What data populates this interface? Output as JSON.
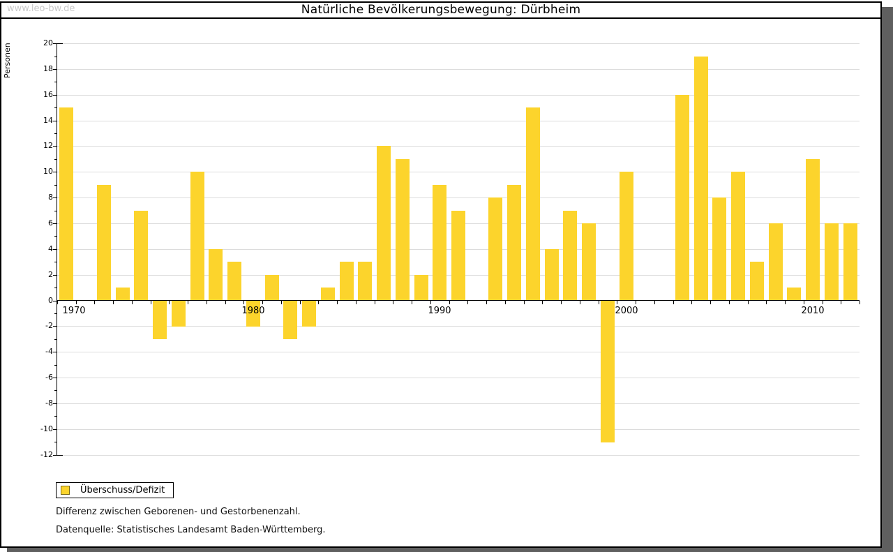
{
  "watermark": "www.leo-bw.de",
  "title": "Natürliche Bevölkerungsbewegung: Dürbheim",
  "legend": {
    "label": "Überschuss/Defizit",
    "swatch_color": "#fcd42c"
  },
  "footnotes": [
    "Differenz zwischen Geborenen- und Gestorbenenzahl.",
    "Datenquelle: Statistisches Landesamt Baden-Württemberg."
  ],
  "colors": {
    "bar": "#fcd42c",
    "grid": "#dcdcdc",
    "axis": "#000000",
    "shadow": "#5f5f5f",
    "watermark": "#c9c9c9"
  },
  "chart_data": {
    "type": "bar",
    "title": "Natürliche Bevölkerungsbewegung: Dürbheim",
    "xlabel": "",
    "ylabel": "Personen",
    "ylim": [
      -12,
      20
    ],
    "ytick_step": 2,
    "grid": true,
    "legend_position": "bottom-left",
    "series_name": "Überschuss/Defizit",
    "xticks_labeled": [
      1970,
      1980,
      1990,
      2000,
      2010
    ],
    "categories": [
      1970,
      1971,
      1972,
      1973,
      1974,
      1975,
      1976,
      1977,
      1978,
      1979,
      1980,
      1981,
      1982,
      1983,
      1984,
      1985,
      1986,
      1987,
      1988,
      1989,
      1990,
      1991,
      1992,
      1993,
      1994,
      1995,
      1996,
      1997,
      1998,
      1999,
      2000,
      2001,
      2002,
      2003,
      2004,
      2005,
      2006,
      2007,
      2008,
      2009,
      2010,
      2011,
      2012
    ],
    "values": [
      15,
      null,
      9,
      1,
      7,
      -3,
      -2,
      10,
      4,
      3,
      -2,
      2,
      -3,
      -2,
      1,
      3,
      3,
      12,
      11,
      2,
      9,
      7,
      null,
      8,
      9,
      15,
      4,
      7,
      6,
      -11,
      10,
      null,
      null,
      16,
      19,
      8,
      10,
      3,
      6,
      1,
      11,
      6,
      6
    ]
  }
}
